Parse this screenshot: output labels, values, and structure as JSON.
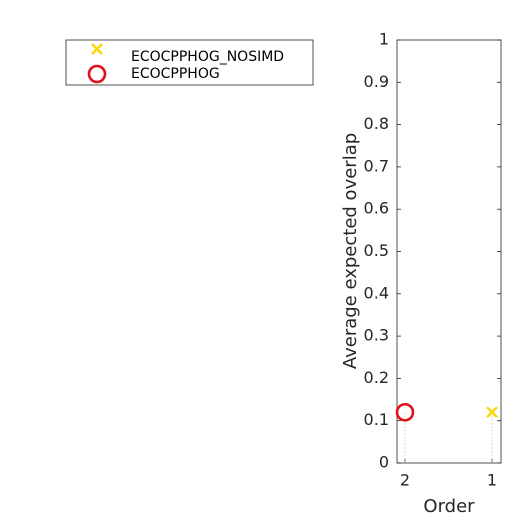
{
  "chart_data": {
    "type": "scatter",
    "xlabel": "Order",
    "ylabel": "Average expected overlap",
    "ylim": [
      0,
      1
    ],
    "yticks": [
      "0",
      "0.1",
      "0.2",
      "0.3",
      "0.4",
      "0.5",
      "0.6",
      "0.7",
      "0.8",
      "0.9",
      "1"
    ],
    "categories": [
      "2",
      "1"
    ],
    "grid": false,
    "legend_position": "top-left, outside plot",
    "series": [
      {
        "name": "ECOCPPHOG_NOSIMD",
        "marker": "x",
        "color": "#FFD700",
        "category": "1",
        "value": 0.12
      },
      {
        "name": "ECOCPPHOG",
        "marker": "circle",
        "color": "#E3101A",
        "category": "2",
        "value": 0.12
      }
    ]
  }
}
